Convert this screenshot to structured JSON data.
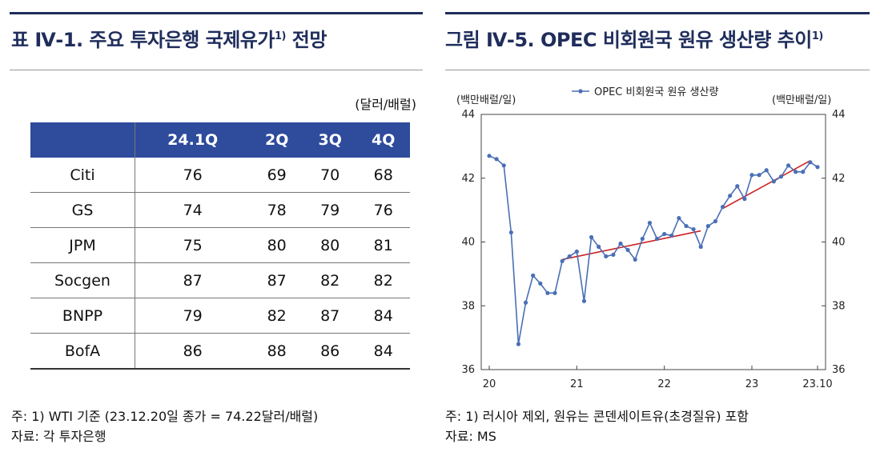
{
  "left_panel": {
    "title": "표 Ⅳ-1. 주요 투자은행 국제유가",
    "title_sup": "1)",
    "title_suffix": " 전망",
    "unit": "(달러/배럴)",
    "columns": [
      "24.1Q",
      "2Q",
      "3Q",
      "4Q"
    ],
    "rows": [
      {
        "bank": "Citi",
        "values": [
          "76",
          "69",
          "70",
          "68"
        ]
      },
      {
        "bank": "GS",
        "values": [
          "74",
          "78",
          "79",
          "76"
        ]
      },
      {
        "bank": "JPM",
        "values": [
          "75",
          "80",
          "80",
          "81"
        ]
      },
      {
        "bank": "Socgen",
        "values": [
          "87",
          "87",
          "82",
          "82"
        ]
      },
      {
        "bank": "BNPP",
        "values": [
          "79",
          "82",
          "87",
          "84"
        ]
      },
      {
        "bank": "BofA",
        "values": [
          "86",
          "88",
          "86",
          "84"
        ]
      }
    ],
    "note": "  주: 1) WTI 기준 (23.12.20일 종가 = 74.22달러/배럴)",
    "source": "자료: 각 투자은행"
  },
  "right_panel": {
    "title": "그림 Ⅳ-5. OPEC 비회원국 원유 생산량 추이",
    "title_sup": "1)",
    "note": "  주: 1) 러시아 제외, 원유는 콘덴세이트유(초경질유) 포함",
    "source": "자료: MS"
  },
  "chart_data": {
    "type": "line",
    "title": "",
    "ylabel_left": "(백만배럴/일)",
    "ylabel_right": "(백만배럴/일)",
    "ylim": [
      36,
      44
    ],
    "yticks": [
      "36",
      "38",
      "40",
      "42",
      "44"
    ],
    "xticks": [
      "20",
      "21",
      "22",
      "23",
      "23.10"
    ],
    "x_start": "2020-01",
    "x_end": "2023-10",
    "series": [
      {
        "name": "OPEC 비회원국 원유 생산량",
        "color": "#4a6fb5",
        "marker": "circle",
        "values": [
          42.7,
          42.6,
          42.4,
          40.3,
          36.8,
          38.1,
          38.95,
          38.7,
          38.4,
          38.4,
          39.4,
          39.55,
          39.7,
          38.15,
          40.15,
          39.85,
          39.55,
          39.6,
          39.95,
          39.75,
          39.45,
          40.1,
          40.6,
          40.1,
          40.25,
          40.2,
          40.75,
          40.5,
          40.4,
          39.85,
          40.5,
          40.65,
          41.1,
          41.45,
          41.75,
          41.35,
          42.1,
          42.1,
          42.25,
          41.9,
          42.05,
          42.4,
          42.2,
          42.2,
          42.5,
          42.35
        ]
      }
    ],
    "trend_lines": [
      {
        "color": "#cc2222",
        "from": {
          "index": 10,
          "value": 39.45
        },
        "to": {
          "index": 29,
          "value": 40.35
        }
      },
      {
        "color": "#cc2222",
        "from": {
          "index": 32,
          "value": 41.05
        },
        "to": {
          "index": 44,
          "value": 42.55
        }
      }
    ],
    "legend_position": "top-center",
    "grid": false
  }
}
